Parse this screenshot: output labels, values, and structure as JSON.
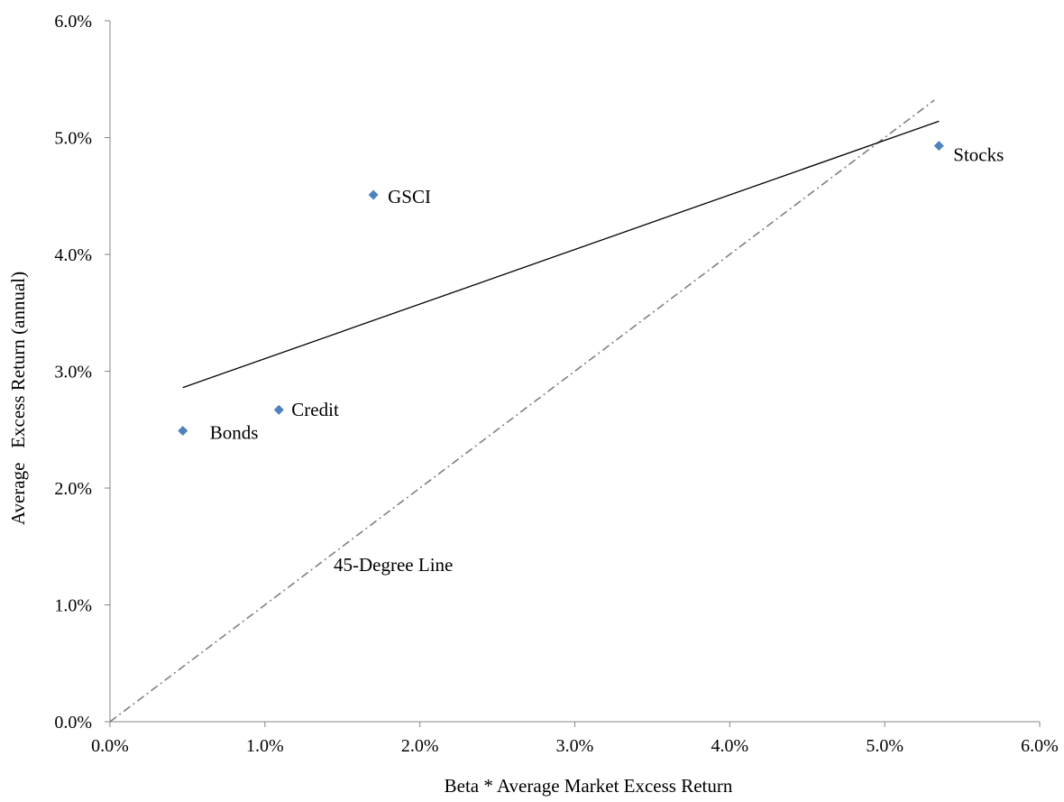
{
  "chart_data": {
    "type": "scatter",
    "title": "",
    "xlabel": "Beta * Average Market Excess Return",
    "ylabel": "Average   Excess Return (annual)",
    "xlim": [
      0,
      6
    ],
    "ylim": [
      0,
      6
    ],
    "x_ticks": [
      "0.0%",
      "1.0%",
      "2.0%",
      "3.0%",
      "4.0%",
      "5.0%",
      "6.0%"
    ],
    "y_ticks": [
      "0.0%",
      "1.0%",
      "2.0%",
      "3.0%",
      "4.0%",
      "5.0%",
      "6.0%"
    ],
    "grid": false,
    "legend": "none",
    "points": [
      {
        "label": "Bonds",
        "x": 0.47,
        "y": 2.49
      },
      {
        "label": "Credit",
        "x": 1.09,
        "y": 2.67
      },
      {
        "label": "GSCI",
        "x": 1.7,
        "y": 4.51
      },
      {
        "label": "Stocks",
        "x": 5.35,
        "y": 4.93
      }
    ],
    "regression_line": {
      "x": [
        0.47,
        5.35
      ],
      "y": [
        2.86,
        5.14
      ]
    },
    "reference_line": {
      "label": "45-Degree Line",
      "x": [
        0,
        5.32
      ],
      "y": [
        0,
        5.32
      ],
      "style": "dash-dot"
    },
    "marker_color": "#4F81BD",
    "regression_color": "#000000",
    "reference_color": "#808080"
  }
}
